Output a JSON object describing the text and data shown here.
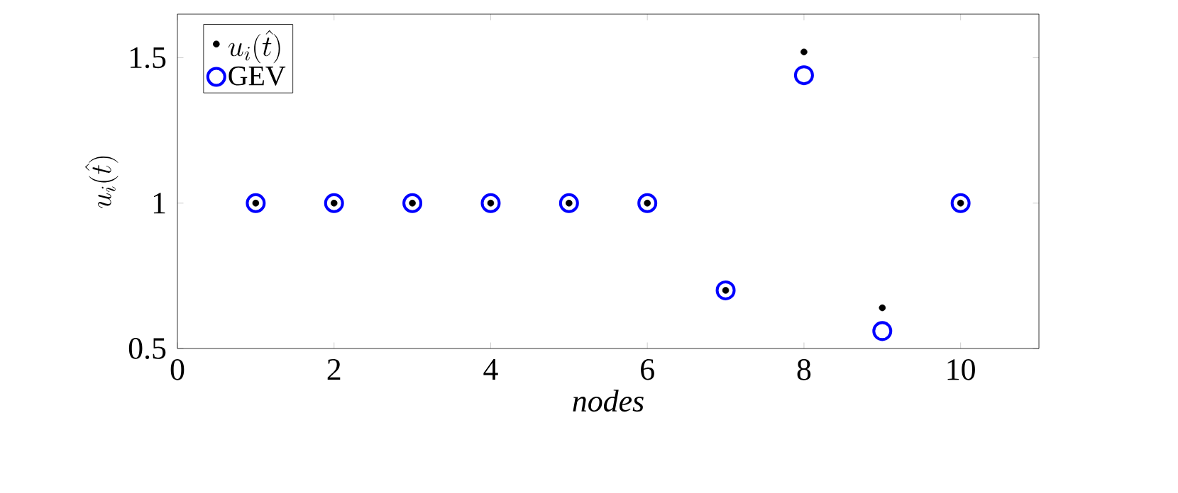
{
  "chart_data": {
    "type": "scatter",
    "xlabel": "nodes",
    "ylabel": "u_i(\\hat{t})",
    "x": [
      1,
      2,
      3,
      4,
      5,
      6,
      7,
      8,
      9,
      10
    ],
    "series": [
      {
        "name": "u_i(\\hat{t})",
        "color": "#000000",
        "marker": "circle",
        "values": [
          1,
          1,
          1,
          1,
          1,
          1,
          0.7,
          1.52,
          0.64,
          1
        ]
      },
      {
        "name": "GEV",
        "color": "#0000ff",
        "marker": "open circle",
        "values": [
          1,
          1,
          1,
          1,
          1,
          1,
          0.7,
          1.44,
          0.56,
          1
        ]
      }
    ],
    "xlim": [
      0,
      11
    ],
    "ylim": [
      0.5,
      1.65
    ],
    "xticks": [
      0,
      2,
      4,
      6,
      8,
      10
    ],
    "yticks": [
      0.5,
      1,
      1.5
    ],
    "legend": "top left",
    "grid": false
  }
}
